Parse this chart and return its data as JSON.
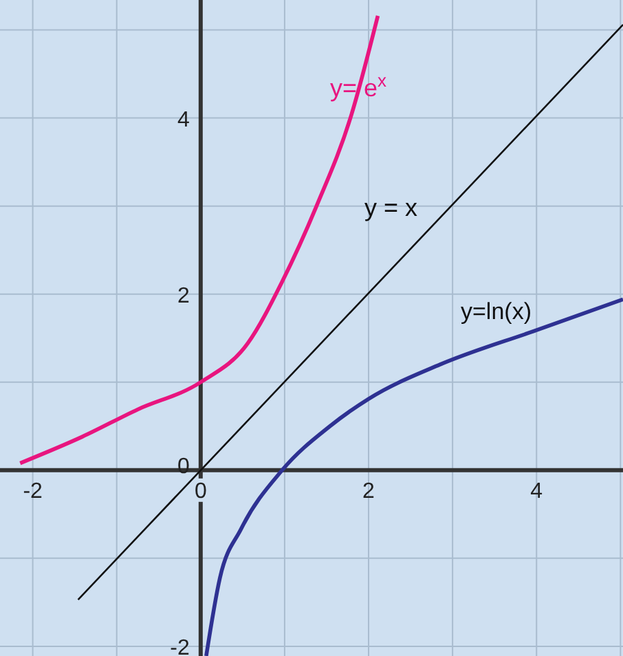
{
  "chart_data": {
    "type": "line",
    "xlim": [
      -2.39,
      5.03
    ],
    "ylim": [
      -2.11,
      5.34
    ],
    "xticks": [
      -2,
      {
        "value": -1,
        "label": null
      },
      0,
      {
        "value": 1,
        "label": null
      },
      2,
      {
        "value": 3,
        "label": null
      },
      4,
      {
        "value": 5,
        "label": null
      }
    ],
    "yticks": [
      -2,
      {
        "value": -1,
        "label": null
      },
      0,
      {
        "value": 1,
        "label": null
      },
      2,
      {
        "value": 3,
        "label": null
      },
      4,
      {
        "value": 5,
        "label": null
      }
    ],
    "grid": true,
    "marker": "none",
    "line_style": "solid",
    "series": [
      {
        "color": "#e8157f",
        "x": [
          -2.15,
          -1.41,
          -0.75,
          0,
          0.56,
          0.97,
          1.38,
          1.79,
          2.11
        ],
        "values": [
          0.08,
          0.38,
          0.69,
          1.0,
          1.44,
          2.14,
          3.0,
          4.02,
          5.16
        ]
      },
      {
        "color": "#111111",
        "x": [
          -1.46,
          5.03
        ],
        "values": [
          -1.47,
          5.06
        ]
      },
      {
        "color": "#2e3192",
        "x": [
          0.066,
          0.23,
          0.48,
          0.97,
          1.54,
          2,
          2.85,
          4,
          5.03
        ],
        "values": [
          -2.11,
          -1.22,
          -0.67,
          0,
          0.5,
          0.81,
          1.2,
          1.59,
          1.94
        ]
      }
    ],
    "annotations": [
      "y= e$^{x}$",
      "y = x",
      "y=ln(x)"
    ]
  }
}
